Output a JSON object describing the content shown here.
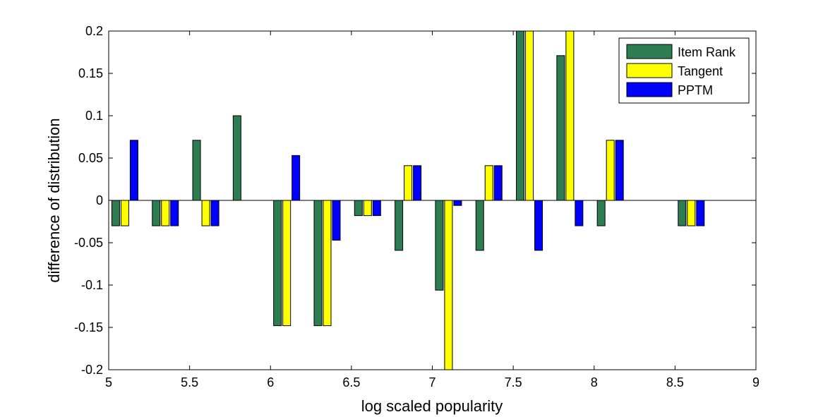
{
  "chart_data": {
    "type": "bar",
    "title": "",
    "xlabel": "log scaled popularity",
    "ylabel": "difference of distribution",
    "xlim": [
      5,
      9
    ],
    "ylim": [
      -0.2,
      0.2
    ],
    "x_ticks": [
      "5",
      "5.5",
      "6",
      "6.5",
      "7",
      "7.5",
      "8",
      "8.5",
      "9"
    ],
    "y_ticks": [
      "-0.2",
      "-0.15",
      "-0.1",
      "-0.05",
      "0",
      "0.05",
      "0.1",
      "0.15",
      "0.2"
    ],
    "grid": false,
    "legend_position": "top-right",
    "x": [
      5.1,
      5.35,
      5.6,
      5.85,
      6.1,
      6.35,
      6.6,
      6.85,
      7.1,
      7.35,
      7.6,
      7.85,
      8.1,
      8.35,
      8.6
    ],
    "series": [
      {
        "name": "Item Rank",
        "color": "#2e7d52",
        "values": [
          -0.03,
          -0.03,
          0.071,
          0.1,
          -0.148,
          -0.148,
          -0.018,
          -0.059,
          -0.106,
          -0.059,
          0.2,
          0.171,
          -0.03,
          0,
          -0.03
        ]
      },
      {
        "name": "Tangent",
        "color": "#ffff00",
        "values": [
          -0.03,
          -0.03,
          -0.03,
          0,
          -0.148,
          -0.148,
          -0.018,
          0.041,
          -0.2,
          0.041,
          0.2,
          0.2,
          0.071,
          0,
          -0.03
        ]
      },
      {
        "name": "PPTM",
        "color": "#0000ff",
        "values": [
          0.071,
          -0.03,
          -0.03,
          0,
          0.053,
          -0.047,
          -0.018,
          0.041,
          -0.006,
          0.041,
          -0.059,
          -0.03,
          0.071,
          0,
          -0.03
        ]
      }
    ]
  }
}
